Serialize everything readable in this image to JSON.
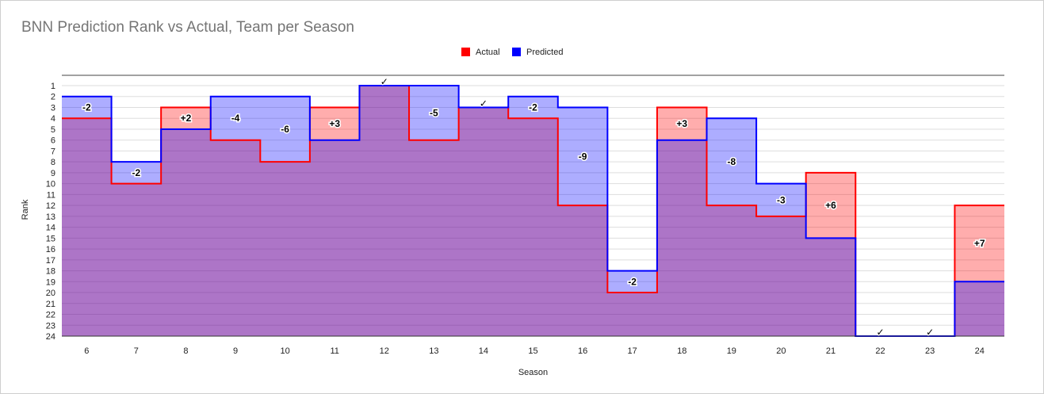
{
  "chart_data": {
    "type": "step-area",
    "title": "BNN Prediction Rank vs Actual, Team per Season",
    "xlabel": "Season",
    "ylabel": "Rank",
    "ylim": [
      1,
      24
    ],
    "y_reversed": true,
    "grid": true,
    "legend_position": "top-center",
    "categories": [
      6,
      7,
      8,
      9,
      10,
      11,
      12,
      13,
      14,
      15,
      16,
      17,
      18,
      19,
      20,
      21,
      22,
      23,
      24
    ],
    "series": [
      {
        "name": "Actual",
        "color": "#ff0000",
        "fill": "#ff9a9a",
        "values": [
          4,
          10,
          3,
          6,
          8,
          3,
          1,
          6,
          3,
          4,
          12,
          20,
          3,
          12,
          13,
          9,
          24,
          24,
          12
        ]
      },
      {
        "name": "Predicted",
        "color": "#0000ff",
        "fill": "#a7a7ff",
        "values": [
          2,
          8,
          5,
          2,
          2,
          6,
          1,
          1,
          3,
          2,
          3,
          18,
          6,
          4,
          10,
          15,
          24,
          24,
          19
        ]
      }
    ],
    "annotations": [
      "-2",
      "-2",
      "+2",
      "-4",
      "-6",
      "+3",
      "✓",
      "-5",
      "✓",
      "-2",
      "-9",
      "-2",
      "+3",
      "-8",
      "-3",
      "+6",
      "✓",
      "✓",
      "+7"
    ]
  }
}
